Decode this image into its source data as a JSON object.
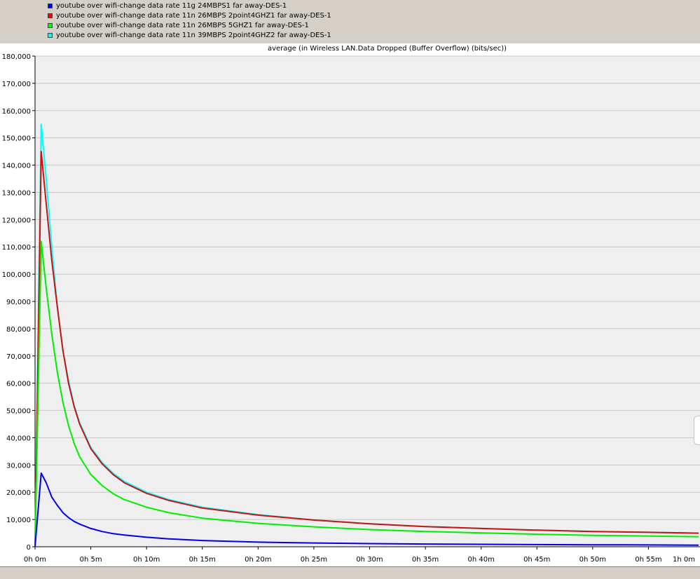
{
  "legend": [
    {
      "label": "youtube over wifi-change data rate 11g 24MBPS1 far away-DES-1",
      "color": "#0000ff"
    },
    {
      "label": "youtube over wifi-change data rate 11n 26MBPS 2point4GHZ1 far away-DES-1",
      "color": "#ff0000"
    },
    {
      "label": "youtube over wifi-change data rate 11n 26MBPS 5GHZ1 far away-DES-1",
      "color": "#00ff00"
    },
    {
      "label": "youtube over wifi-change data rate 11n 39MBPS 2point4GHZ2 far away-DES-1",
      "color": "#00ffff"
    }
  ],
  "chart_data": {
    "type": "line",
    "title": "average (in Wireless LAN.Data Dropped (Buffer Overflow) (bits/sec))",
    "xlabel": "",
    "ylabel": "",
    "xlim": [
      0,
      60
    ],
    "ylim": [
      0,
      180000
    ],
    "x_tick_values": [
      0,
      5,
      10,
      15,
      20,
      25,
      30,
      35,
      40,
      45,
      50,
      55,
      60
    ],
    "x_tick_labels": [
      "0h 0m",
      "0h 5m",
      "0h 10m",
      "0h 15m",
      "0h 20m",
      "0h 25m",
      "0h 30m",
      "0h 35m",
      "0h 40m",
      "0h 45m",
      "0h 50m",
      "0h 55m",
      "1h 0m"
    ],
    "y_tick_values": [
      0,
      10000,
      20000,
      30000,
      40000,
      50000,
      60000,
      70000,
      80000,
      90000,
      100000,
      110000,
      120000,
      130000,
      140000,
      150000,
      160000,
      170000,
      180000
    ],
    "y_tick_labels": [
      "0",
      "10,000",
      "20,000",
      "30,000",
      "40,000",
      "50,000",
      "60,000",
      "70,000",
      "80,000",
      "90,000",
      "100,000",
      "110,000",
      "120,000",
      "130,000",
      "140,000",
      "150,000",
      "160,000",
      "170,000",
      "180,000"
    ],
    "grid": true,
    "background_color": "#efefef",
    "series": [
      {
        "name": "youtube over wifi-change data rate 11n 39MBPS 2point4GHZ2 far away-DES-1",
        "color": "#00ffff",
        "x": [
          0,
          0.55,
          1.0,
          1.5,
          2.0,
          2.5,
          3.0,
          3.5,
          4.0,
          5.0,
          6.0,
          7.0,
          8.0,
          10.0,
          12.0,
          15.0,
          20.0,
          25.0,
          30.0,
          35.0,
          40.0,
          45.0,
          50.0,
          55.0,
          59.5
        ],
        "y": [
          0,
          155000,
          135000,
          110000,
          88000,
          72000,
          61000,
          52000,
          45500,
          36500,
          31000,
          27000,
          24000,
          20000,
          17300,
          14500,
          11800,
          9800,
          8400,
          7400,
          6700,
          6100,
          5600,
          5300,
          5000
        ]
      },
      {
        "name": "youtube over wifi-change data rate 11n 26MBPS 2point4GHZ1 far away-DES-1",
        "color": "#cc1111",
        "x": [
          0,
          0.55,
          1.0,
          1.5,
          2.0,
          2.5,
          3.0,
          3.5,
          4.0,
          5.0,
          6.0,
          7.0,
          8.0,
          10.0,
          12.0,
          15.0,
          20.0,
          25.0,
          30.0,
          35.0,
          40.0,
          45.0,
          50.0,
          55.0,
          59.5
        ],
        "y": [
          0,
          145000,
          126000,
          105000,
          88000,
          72000,
          60000,
          51500,
          45000,
          36000,
          30500,
          26500,
          23500,
          19600,
          17000,
          14200,
          11600,
          9800,
          8400,
          7400,
          6700,
          6100,
          5600,
          5300,
          5000
        ]
      },
      {
        "name": "youtube over wifi-change data rate 11n 26MBPS 5GHZ1 far away-DES-1",
        "color": "#00ee00",
        "x": [
          0,
          0.55,
          1.0,
          1.5,
          2.0,
          2.5,
          3.0,
          3.5,
          4.0,
          5.0,
          6.0,
          7.0,
          8.0,
          10.0,
          12.0,
          15.0,
          20.0,
          25.0,
          30.0,
          35.0,
          40.0,
          45.0,
          50.0,
          55.0,
          59.5
        ],
        "y": [
          0,
          112000,
          95000,
          78000,
          64000,
          53000,
          44500,
          38000,
          33000,
          26500,
          22500,
          19500,
          17300,
          14500,
          12500,
          10500,
          8600,
          7300,
          6300,
          5600,
          5100,
          4600,
          4200,
          3900,
          3700
        ]
      },
      {
        "name": "youtube over wifi-change data rate 11g 24MBPS1 far away-DES-1",
        "color": "#0000ee",
        "x": [
          0,
          0.55,
          1.0,
          1.5,
          2.0,
          2.5,
          3.0,
          3.5,
          4.0,
          5.0,
          6.0,
          7.0,
          8.0,
          10.0,
          12.0,
          15.0,
          20.0,
          25.0,
          30.0,
          35.0,
          40.0,
          45.0,
          50.0,
          55.0,
          59.5
        ],
        "y": [
          0,
          27000,
          23500,
          18200,
          15200,
          12500,
          10700,
          9300,
          8300,
          6700,
          5600,
          4800,
          4300,
          3500,
          2900,
          2300,
          1700,
          1400,
          1150,
          1000,
          900,
          800,
          720,
          660,
          600
        ]
      }
    ]
  }
}
